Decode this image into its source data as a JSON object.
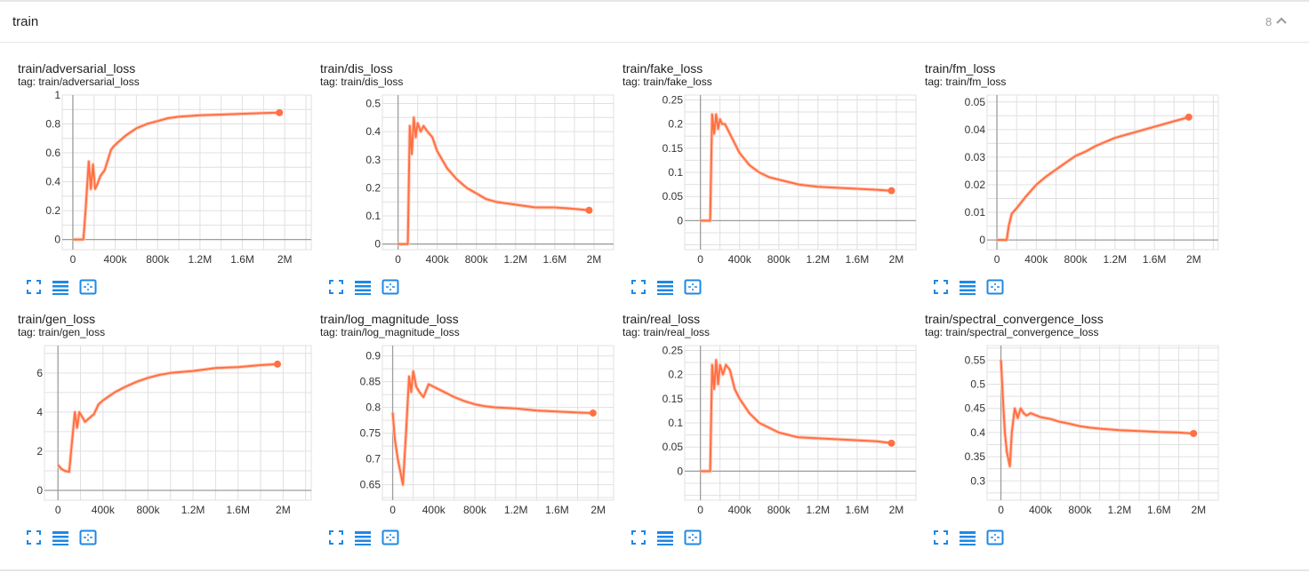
{
  "header": {
    "title": "train",
    "count": "8"
  },
  "cards": [
    {
      "title": "train/adversarial_loss",
      "tag": "tag: train/adversarial_loss"
    },
    {
      "title": "train/dis_loss",
      "tag": "tag: train/dis_loss"
    },
    {
      "title": "train/fake_loss",
      "tag": "tag: train/fake_loss"
    },
    {
      "title": "train/fm_loss",
      "tag": "tag: train/fm_loss"
    },
    {
      "title": "train/gen_loss",
      "tag": "tag: train/gen_loss"
    },
    {
      "title": "train/log_magnitude_loss",
      "tag": "tag: train/log_magnitude_loss"
    },
    {
      "title": "train/real_loss",
      "tag": "tag: train/real_loss"
    },
    {
      "title": "train/spectral_convergence_loss",
      "tag": "tag: train/spectral_convergence_loss"
    }
  ],
  "colors": {
    "line": "#ff7043",
    "line_faint": "#ffccbc",
    "icon": "#1e88e5",
    "grid": "#e0e0e0",
    "axis": "#9e9e9e"
  },
  "icons": [
    "fullscreen-icon",
    "data-table-icon",
    "fit-domain-icon"
  ],
  "chart_data": [
    {
      "type": "line",
      "title": "train/adversarial_loss",
      "xlim": [
        -100000,
        2250000
      ],
      "ylim": [
        -0.07,
        1.0
      ],
      "yticks": [
        0,
        0.2,
        0.4,
        0.6,
        0.8,
        1
      ],
      "ytick_labels": [
        "0",
        "0.2",
        "0.4",
        "0.6",
        "0.8",
        "1"
      ],
      "xticks": [
        0,
        400000,
        800000,
        1200000,
        1600000,
        2000000
      ],
      "xtick_labels": [
        "0",
        "400k",
        "800k",
        "1.2M",
        "1.6M",
        "2M"
      ],
      "series": [
        {
          "x": [
            0,
            100000,
            120000,
            150000,
            170000,
            190000,
            210000,
            230000,
            260000,
            300000,
            360000,
            380000,
            420000,
            500000,
            600000,
            700000,
            800000,
            900000,
            1000000,
            1200000,
            1400000,
            1600000,
            1800000,
            1950000
          ],
          "y": [
            0,
            0,
            0.2,
            0.54,
            0.35,
            0.52,
            0.35,
            0.38,
            0.44,
            0.48,
            0.62,
            0.64,
            0.67,
            0.72,
            0.77,
            0.8,
            0.82,
            0.84,
            0.85,
            0.86,
            0.865,
            0.87,
            0.875,
            0.878
          ]
        }
      ]
    },
    {
      "type": "line",
      "title": "train/dis_loss",
      "xlim": [
        -160000,
        2200000
      ],
      "ylim": [
        -0.02,
        0.53
      ],
      "yticks": [
        0,
        0.1,
        0.2,
        0.3,
        0.4,
        0.5
      ],
      "ytick_labels": [
        "0",
        "0.1",
        "0.2",
        "0.3",
        "0.4",
        "0.5"
      ],
      "xticks": [
        0,
        400000,
        800000,
        1200000,
        1600000,
        2000000
      ],
      "xtick_labels": [
        "0",
        "400k",
        "800k",
        "1.2M",
        "1.6M",
        "2M"
      ],
      "series": [
        {
          "x": [
            0,
            100000,
            120000,
            140000,
            160000,
            180000,
            200000,
            230000,
            260000,
            300000,
            350000,
            400000,
            500000,
            600000,
            700000,
            800000,
            900000,
            1000000,
            1200000,
            1400000,
            1600000,
            1800000,
            1950000
          ],
          "y": [
            0,
            0,
            0.42,
            0.32,
            0.45,
            0.38,
            0.43,
            0.4,
            0.42,
            0.4,
            0.38,
            0.33,
            0.27,
            0.23,
            0.2,
            0.18,
            0.16,
            0.15,
            0.14,
            0.13,
            0.13,
            0.125,
            0.12
          ]
        }
      ]
    },
    {
      "type": "line",
      "title": "train/fake_loss",
      "xlim": [
        -160000,
        2200000
      ],
      "ylim": [
        -0.06,
        0.26
      ],
      "yticks": [
        0,
        0.05,
        0.1,
        0.15,
        0.2,
        0.25
      ],
      "ytick_labels": [
        "0",
        "0.05",
        "0.1",
        "0.15",
        "0.2",
        "0.25"
      ],
      "xticks": [
        0,
        400000,
        800000,
        1200000,
        1600000,
        2000000
      ],
      "xtick_labels": [
        "0",
        "400k",
        "800k",
        "1.2M",
        "1.6M",
        "2M"
      ],
      "series": [
        {
          "x": [
            0,
            100000,
            120000,
            140000,
            160000,
            180000,
            200000,
            220000,
            250000,
            300000,
            350000,
            400000,
            500000,
            600000,
            700000,
            800000,
            900000,
            1000000,
            1200000,
            1400000,
            1600000,
            1800000,
            1950000
          ],
          "y": [
            0,
            0,
            0.22,
            0.18,
            0.22,
            0.19,
            0.21,
            0.2,
            0.2,
            0.18,
            0.16,
            0.14,
            0.115,
            0.1,
            0.09,
            0.085,
            0.08,
            0.075,
            0.07,
            0.068,
            0.066,
            0.064,
            0.062
          ]
        }
      ]
    },
    {
      "type": "line",
      "title": "train/fm_loss",
      "xlim": [
        -100000,
        2250000
      ],
      "ylim": [
        -0.0035,
        0.0525
      ],
      "yticks": [
        0,
        0.01,
        0.02,
        0.03,
        0.04,
        0.05
      ],
      "ytick_labels": [
        "0",
        "0.01",
        "0.02",
        "0.03",
        "0.04",
        "0.05"
      ],
      "xticks": [
        0,
        400000,
        800000,
        1200000,
        1600000,
        2000000
      ],
      "xtick_labels": [
        "0",
        "400k",
        "800k",
        "1.2M",
        "1.6M",
        "2M"
      ],
      "series": [
        {
          "x": [
            0,
            100000,
            120000,
            150000,
            200000,
            300000,
            400000,
            500000,
            600000,
            700000,
            800000,
            900000,
            1000000,
            1200000,
            1400000,
            1600000,
            1800000,
            1950000
          ],
          "y": [
            0,
            0,
            0.005,
            0.0095,
            0.0115,
            0.016,
            0.02,
            0.023,
            0.0255,
            0.028,
            0.0305,
            0.032,
            0.034,
            0.037,
            0.039,
            0.041,
            0.043,
            0.0445
          ]
        }
      ]
    },
    {
      "type": "line",
      "title": "train/gen_loss",
      "xlim": [
        -120000,
        2250000
      ],
      "ylim": [
        -0.5,
        7.4
      ],
      "yticks": [
        0,
        2,
        4,
        6
      ],
      "ytick_labels": [
        "0",
        "2",
        "4",
        "6"
      ],
      "xticks": [
        0,
        400000,
        800000,
        1200000,
        1600000,
        2000000
      ],
      "xtick_labels": [
        "0",
        "400k",
        "800k",
        "1.2M",
        "1.6M",
        "2M"
      ],
      "series": [
        {
          "x": [
            0,
            30000,
            60000,
            100000,
            120000,
            150000,
            170000,
            190000,
            210000,
            240000,
            280000,
            320000,
            360000,
            400000,
            500000,
            600000,
            700000,
            800000,
            900000,
            1000000,
            1200000,
            1400000,
            1600000,
            1800000,
            1950000
          ],
          "y": [
            1.3,
            1.1,
            1.0,
            0.95,
            2.2,
            4.0,
            3.2,
            4.0,
            3.8,
            3.5,
            3.7,
            3.9,
            4.4,
            4.6,
            5.0,
            5.3,
            5.55,
            5.75,
            5.9,
            6.0,
            6.1,
            6.25,
            6.3,
            6.4,
            6.45
          ]
        }
      ]
    },
    {
      "type": "line",
      "title": "train/log_magnitude_loss",
      "xlim": [
        -100000,
        2150000
      ],
      "ylim": [
        0.62,
        0.92
      ],
      "yticks": [
        0.65,
        0.7,
        0.75,
        0.8,
        0.85,
        0.9
      ],
      "ytick_labels": [
        "0.65",
        "0.7",
        "0.75",
        "0.8",
        "0.85",
        "0.9"
      ],
      "xticks": [
        0,
        400000,
        800000,
        1200000,
        1600000,
        2000000
      ],
      "xtick_labels": [
        "0",
        "400k",
        "800k",
        "1.2M",
        "1.6M",
        "2M"
      ],
      "series": [
        {
          "x": [
            0,
            20000,
            50000,
            80000,
            100000,
            130000,
            160000,
            180000,
            200000,
            230000,
            260000,
            300000,
            350000,
            400000,
            500000,
            600000,
            700000,
            800000,
            900000,
            1000000,
            1200000,
            1400000,
            1600000,
            1800000,
            1950000
          ],
          "y": [
            0.79,
            0.74,
            0.7,
            0.67,
            0.65,
            0.75,
            0.86,
            0.83,
            0.87,
            0.84,
            0.83,
            0.82,
            0.845,
            0.84,
            0.83,
            0.82,
            0.812,
            0.806,
            0.802,
            0.8,
            0.798,
            0.794,
            0.792,
            0.79,
            0.789
          ]
        }
      ]
    },
    {
      "type": "line",
      "title": "train/real_loss",
      "xlim": [
        -160000,
        2200000
      ],
      "ylim": [
        -0.06,
        0.26
      ],
      "yticks": [
        0,
        0.05,
        0.1,
        0.15,
        0.2,
        0.25
      ],
      "ytick_labels": [
        "0",
        "0.05",
        "0.1",
        "0.15",
        "0.2",
        "0.25"
      ],
      "xticks": [
        0,
        400000,
        800000,
        1200000,
        1600000,
        2000000
      ],
      "xtick_labels": [
        "0",
        "400k",
        "800k",
        "1.2M",
        "1.6M",
        "2M"
      ],
      "series": [
        {
          "x": [
            0,
            100000,
            120000,
            140000,
            160000,
            180000,
            200000,
            230000,
            260000,
            300000,
            350000,
            400000,
            500000,
            600000,
            700000,
            800000,
            900000,
            1000000,
            1200000,
            1400000,
            1600000,
            1800000,
            1950000
          ],
          "y": [
            0,
            0,
            0.22,
            0.17,
            0.23,
            0.18,
            0.22,
            0.2,
            0.22,
            0.21,
            0.17,
            0.15,
            0.12,
            0.1,
            0.09,
            0.08,
            0.075,
            0.07,
            0.068,
            0.066,
            0.064,
            0.062,
            0.058
          ]
        }
      ]
    },
    {
      "type": "line",
      "title": "train/spectral_convergence_loss",
      "xlim": [
        -140000,
        2200000
      ],
      "ylim": [
        0.26,
        0.58
      ],
      "yticks": [
        0.3,
        0.35,
        0.4,
        0.45,
        0.5,
        0.55
      ],
      "ytick_labels": [
        "0.3",
        "0.35",
        "0.4",
        "0.45",
        "0.5",
        "0.55"
      ],
      "xticks": [
        0,
        400000,
        800000,
        1200000,
        1600000,
        2000000
      ],
      "xtick_labels": [
        "0",
        "400k",
        "800k",
        "1.2M",
        "1.6M",
        "2M"
      ],
      "series": [
        {
          "x": [
            0,
            20000,
            40000,
            60000,
            90000,
            110000,
            140000,
            170000,
            200000,
            230000,
            260000,
            300000,
            400000,
            500000,
            600000,
            700000,
            800000,
            900000,
            1000000,
            1200000,
            1400000,
            1600000,
            1800000,
            1950000
          ],
          "y": [
            0.55,
            0.47,
            0.4,
            0.36,
            0.33,
            0.4,
            0.45,
            0.43,
            0.45,
            0.44,
            0.435,
            0.44,
            0.432,
            0.428,
            0.422,
            0.418,
            0.413,
            0.41,
            0.408,
            0.405,
            0.403,
            0.401,
            0.4,
            0.398
          ]
        }
      ]
    }
  ]
}
